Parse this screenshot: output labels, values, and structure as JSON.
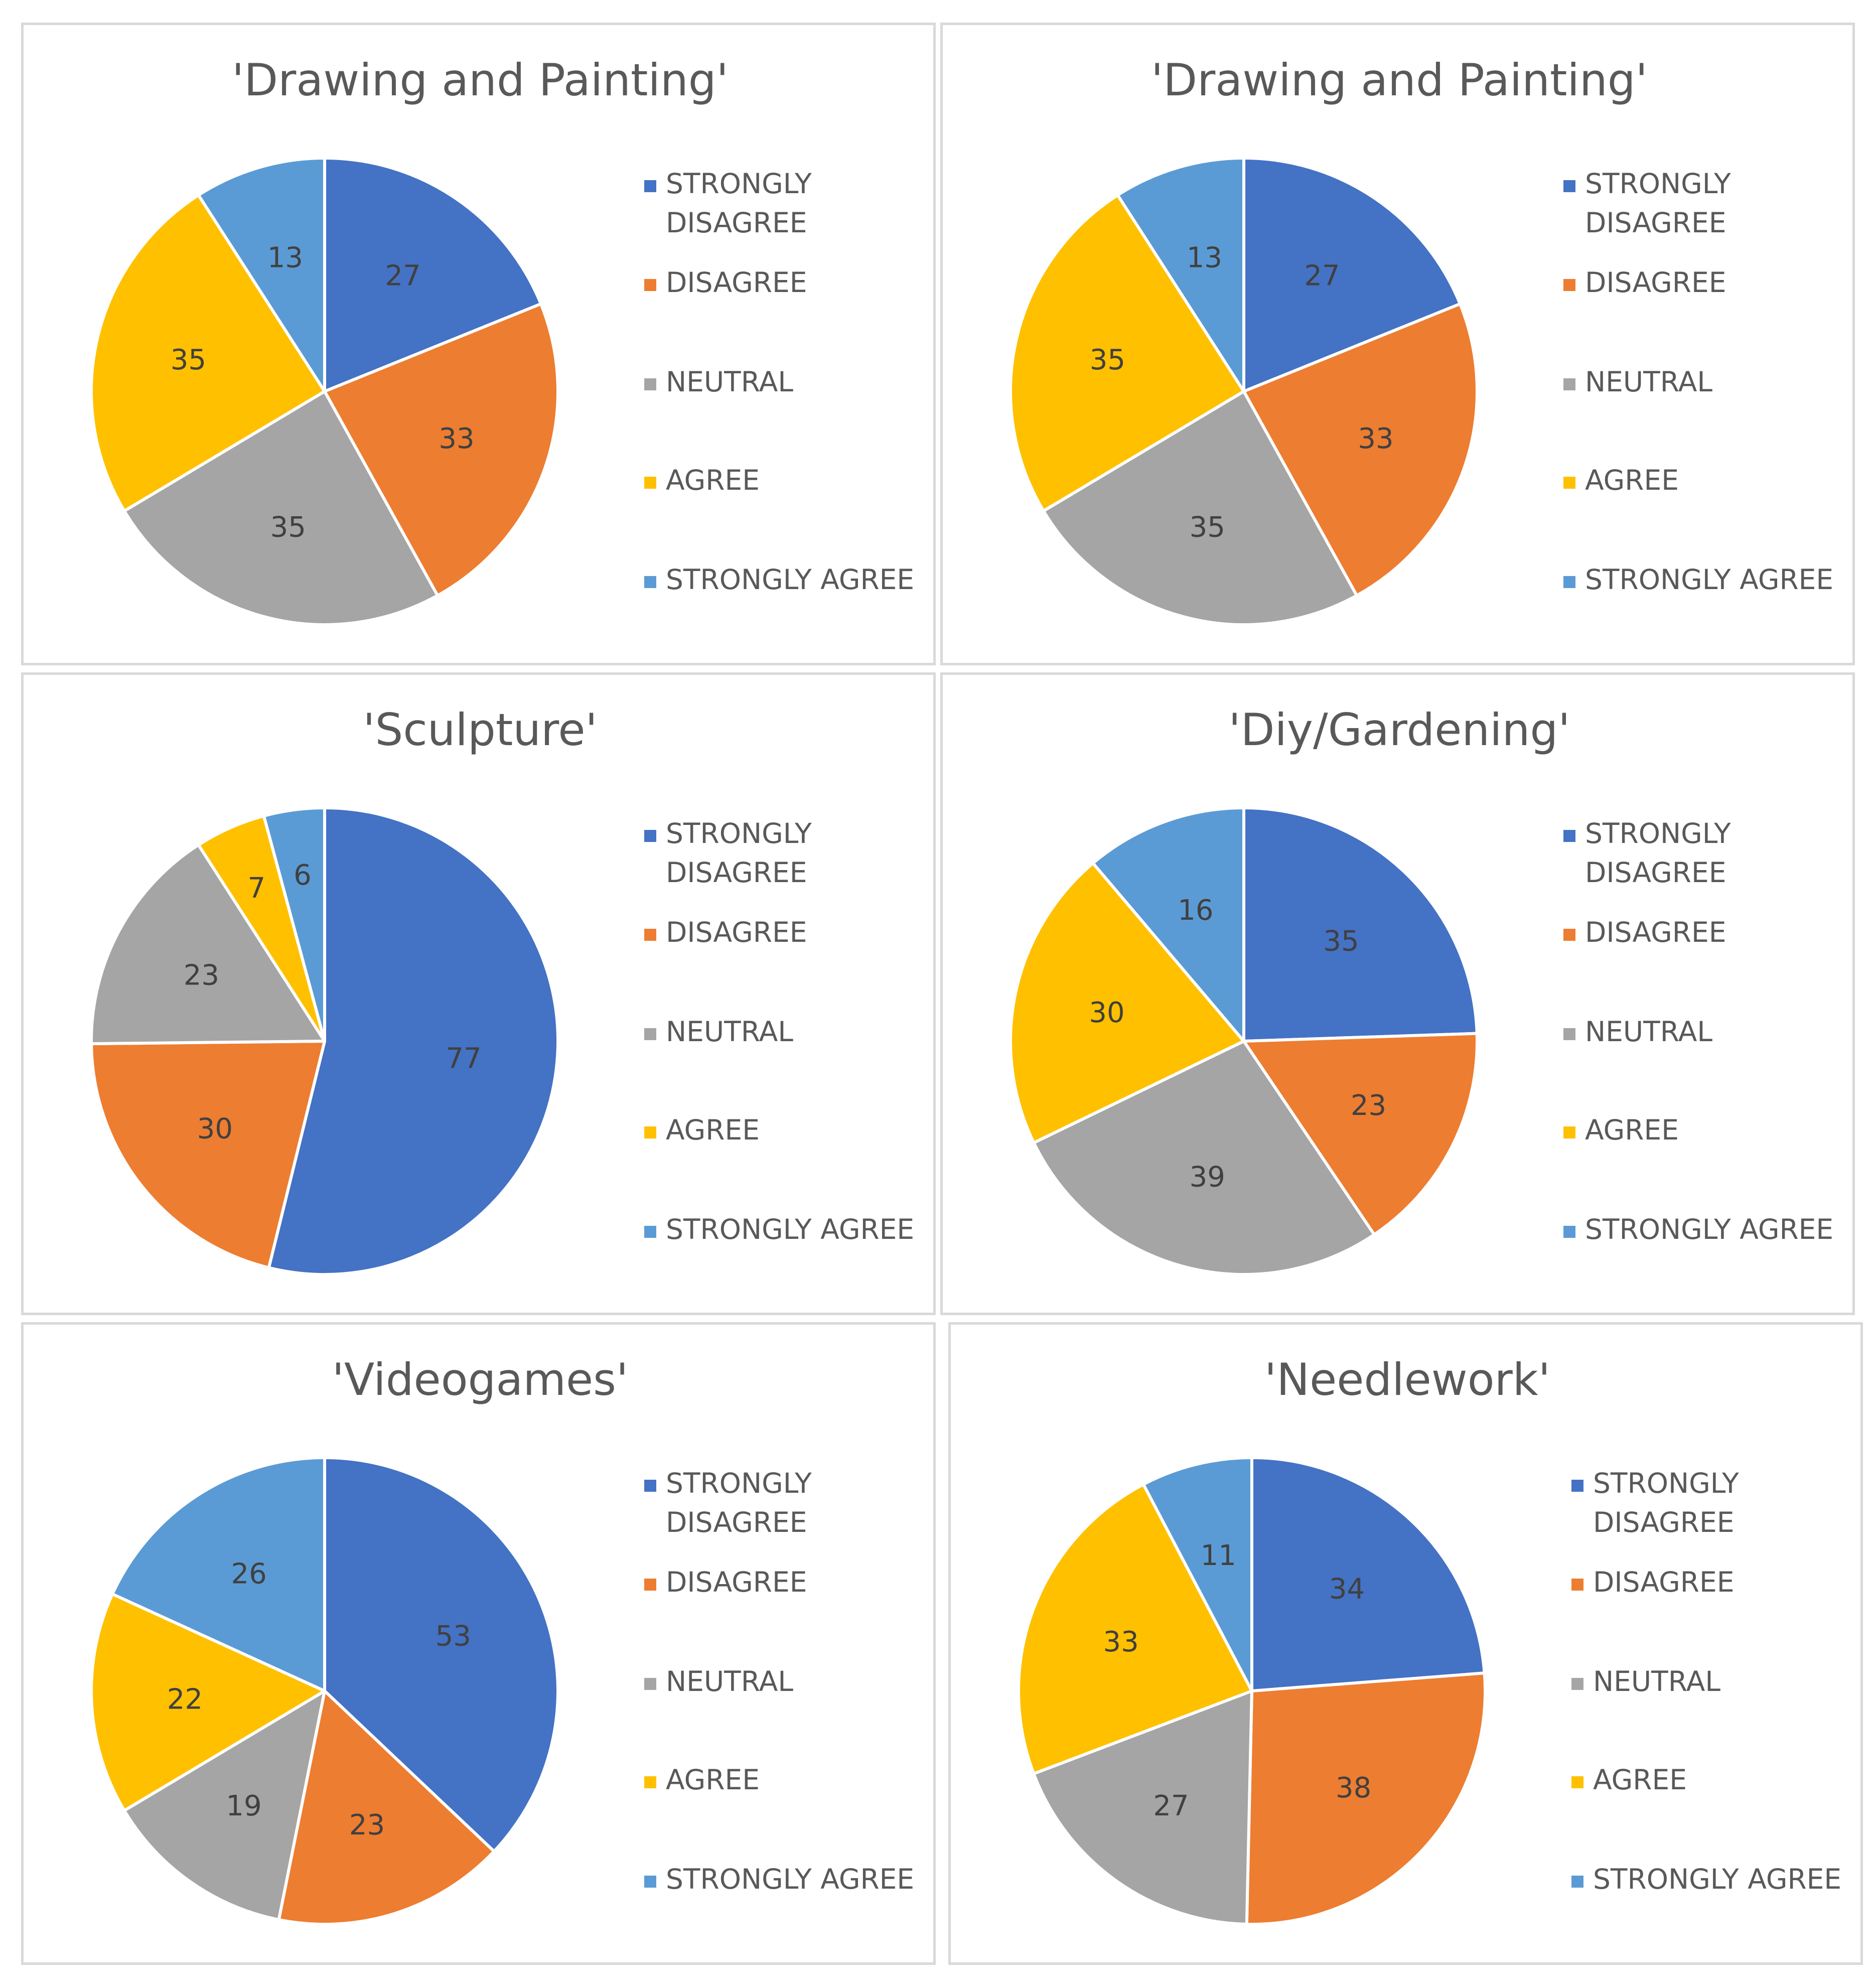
{
  "legend": [
    "STRONGLY DISAGREE",
    "DISAGREE",
    "NEUTRAL",
    "AGREE",
    "STRONGLY AGREE"
  ],
  "colors": [
    "#4472C4",
    "#ED7D31",
    "#A5A5A5",
    "#FFC000",
    "#5B9BD5"
  ],
  "chart_data": [
    {
      "type": "pie",
      "title": "'Drawing and Painting'",
      "categories": [
        "STRONGLY DISAGREE",
        "DISAGREE",
        "NEUTRAL",
        "AGREE",
        "STRONGLY AGREE"
      ],
      "values": [
        27,
        33,
        35,
        35,
        13
      ],
      "legend_position": "right"
    },
    {
      "type": "pie",
      "title": "'Drawing and Painting'",
      "categories": [
        "STRONGLY DISAGREE",
        "DISAGREE",
        "NEUTRAL",
        "AGREE",
        "STRONGLY AGREE"
      ],
      "values": [
        27,
        33,
        35,
        35,
        13
      ],
      "legend_position": "right"
    },
    {
      "type": "pie",
      "title": "'Sculpture'",
      "categories": [
        "STRONGLY DISAGREE",
        "DISAGREE",
        "NEUTRAL",
        "AGREE",
        "STRONGLY AGREE"
      ],
      "values": [
        77,
        30,
        23,
        7,
        6
      ],
      "legend_position": "right"
    },
    {
      "type": "pie",
      "title": "'Diy/Gardening'",
      "categories": [
        "STRONGLY DISAGREE",
        "DISAGREE",
        "NEUTRAL",
        "AGREE",
        "STRONGLY AGREE"
      ],
      "values": [
        35,
        23,
        39,
        30,
        16
      ],
      "legend_position": "right"
    },
    {
      "type": "pie",
      "title": "'Videogames'",
      "categories": [
        "STRONGLY DISAGREE",
        "DISAGREE",
        "NEUTRAL",
        "AGREE",
        "STRONGLY AGREE"
      ],
      "values": [
        53,
        23,
        19,
        22,
        26
      ],
      "legend_position": "right"
    },
    {
      "type": "pie",
      "title": "'Needlework'",
      "categories": [
        "STRONGLY DISAGREE",
        "DISAGREE",
        "NEUTRAL",
        "AGREE",
        "STRONGLY AGREE"
      ],
      "values": [
        34,
        38,
        27,
        33,
        11
      ],
      "legend_position": "right"
    }
  ]
}
